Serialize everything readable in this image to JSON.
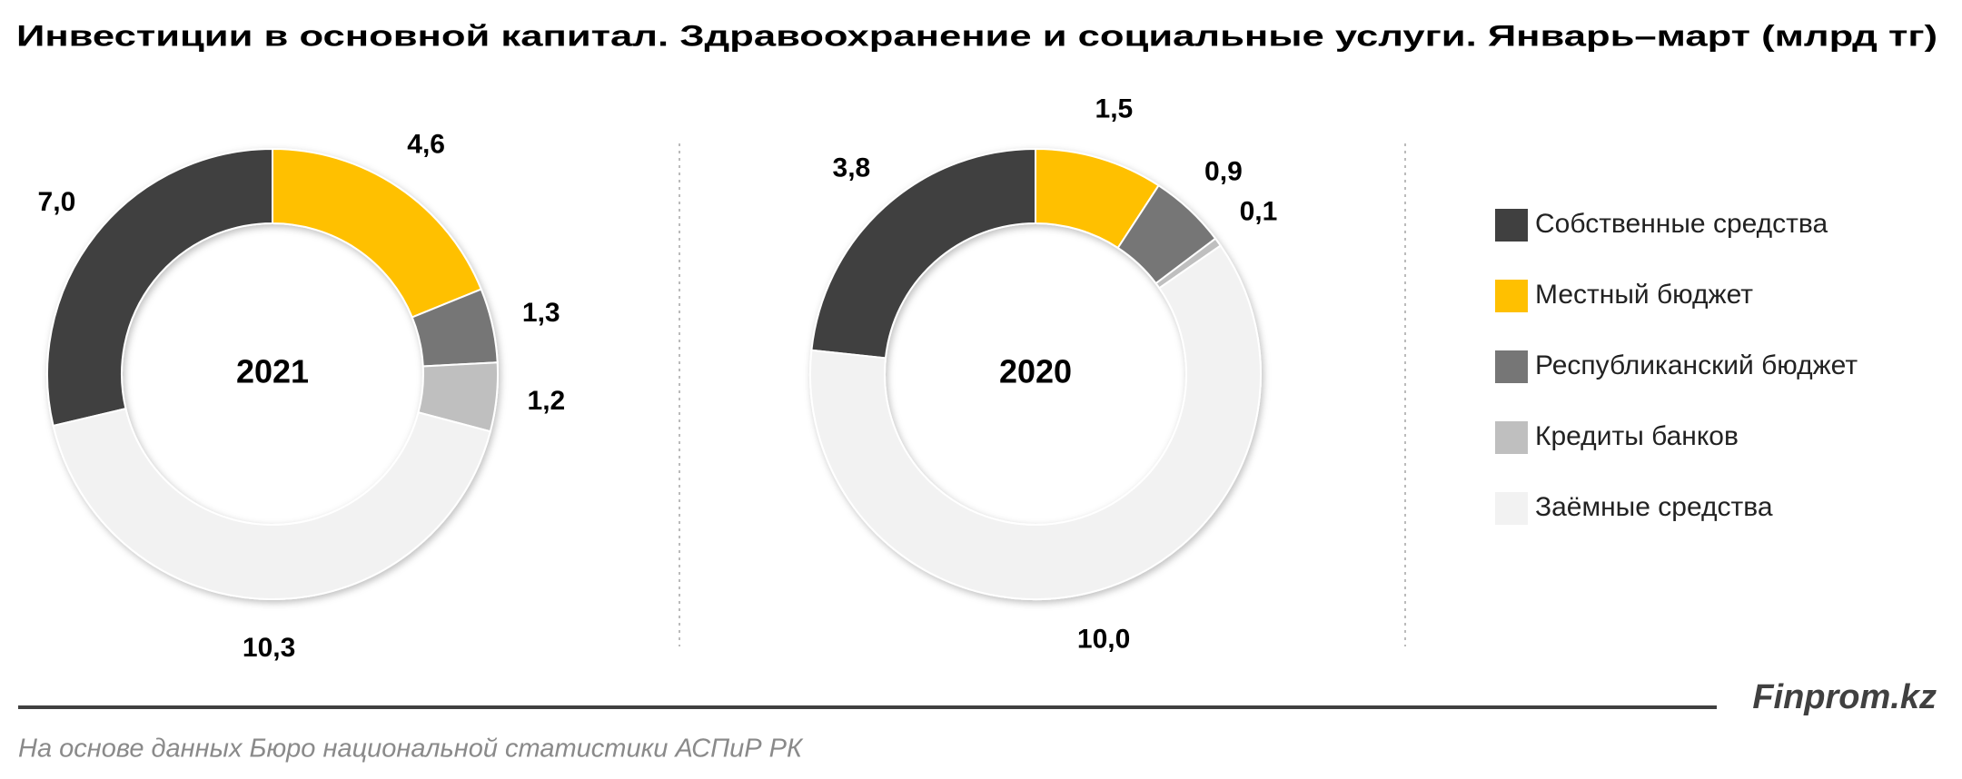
{
  "title": "Инвестиции в основной капитал. Здравоохранение и социальные услуги. Январь–март (млрд тг)",
  "brand": "Finprom.kz",
  "source": "На основе данных  Бюро национальной  статистики АСПиР РК",
  "chart_data": [
    {
      "type": "pie",
      "title": "2021",
      "categories": [
        "Собственные средства",
        "Местный бюджет",
        "Республиканский бюджет",
        "Кредиты банков",
        "Заёмные средства"
      ],
      "values": [
        7.0,
        4.6,
        1.3,
        1.2,
        10.3
      ],
      "value_labels": [
        "7,0",
        "4,6",
        "1,3",
        "1,2",
        "10,3"
      ],
      "colors": [
        "#404040",
        "#ffc000",
        "#767676",
        "#bfbfbf",
        "#f2f2f2"
      ]
    },
    {
      "type": "pie",
      "title": "2020",
      "categories": [
        "Собственные средства",
        "Местный бюджет",
        "Республиканский бюджет",
        "Кредиты банков",
        "Заёмные средства"
      ],
      "values": [
        3.8,
        1.5,
        0.9,
        0.1,
        10.0
      ],
      "value_labels": [
        "3,8",
        "1,5",
        "0,9",
        "0,1",
        "10,0"
      ],
      "colors": [
        "#404040",
        "#ffc000",
        "#767676",
        "#bfbfbf",
        "#f2f2f2"
      ]
    }
  ]
}
